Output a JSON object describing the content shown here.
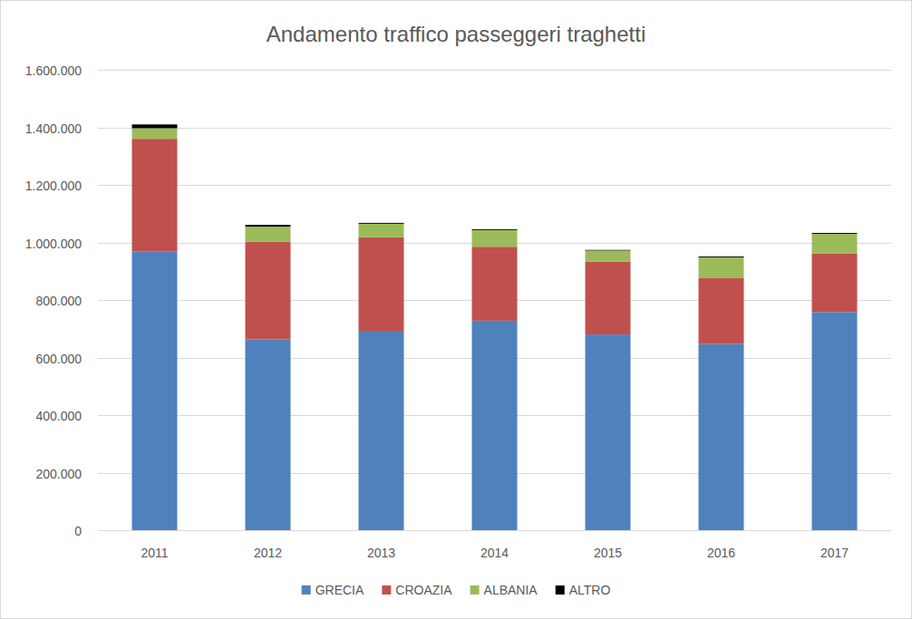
{
  "chart_data": {
    "type": "bar",
    "stacked": true,
    "grid": true,
    "legend": "bottom",
    "title": "Andamento traffico passeggeri traghetti",
    "categories": [
      "2011",
      "2012",
      "2013",
      "2014",
      "2015",
      "2016",
      "2017"
    ],
    "series": [
      {
        "name": "GRECIA",
        "color": "#4f81bd",
        "values": [
          968000,
          663000,
          690000,
          728000,
          680000,
          647000,
          758000
        ]
      },
      {
        "name": "CROAZIA",
        "color": "#c0504d",
        "values": [
          392000,
          339000,
          328000,
          257000,
          253000,
          229000,
          204000
        ]
      },
      {
        "name": "ALBANIA",
        "color": "#9bbb59",
        "values": [
          37000,
          53000,
          47000,
          58000,
          39000,
          72000,
          68000
        ]
      },
      {
        "name": "ALTRO",
        "color": "#000000",
        "values": [
          13000,
          6000,
          3000,
          3000,
          2000,
          3000,
          3000
        ]
      }
    ],
    "ylim": [
      0,
      1600000
    ],
    "yticks": [
      0,
      {
        "value": 200000,
        "label": "200.000"
      },
      {
        "value": 400000,
        "label": "400.000"
      },
      {
        "value": 600000,
        "label": "600.000"
      },
      {
        "value": 800000,
        "label": "800.000"
      },
      {
        "value": 1000000,
        "label": "1.000.000"
      },
      {
        "value": 1200000,
        "label": "1.200.000"
      },
      {
        "value": 1400000,
        "label": "1.400.000"
      },
      {
        "value": 1600000,
        "label": "1.600.000"
      }
    ]
  }
}
